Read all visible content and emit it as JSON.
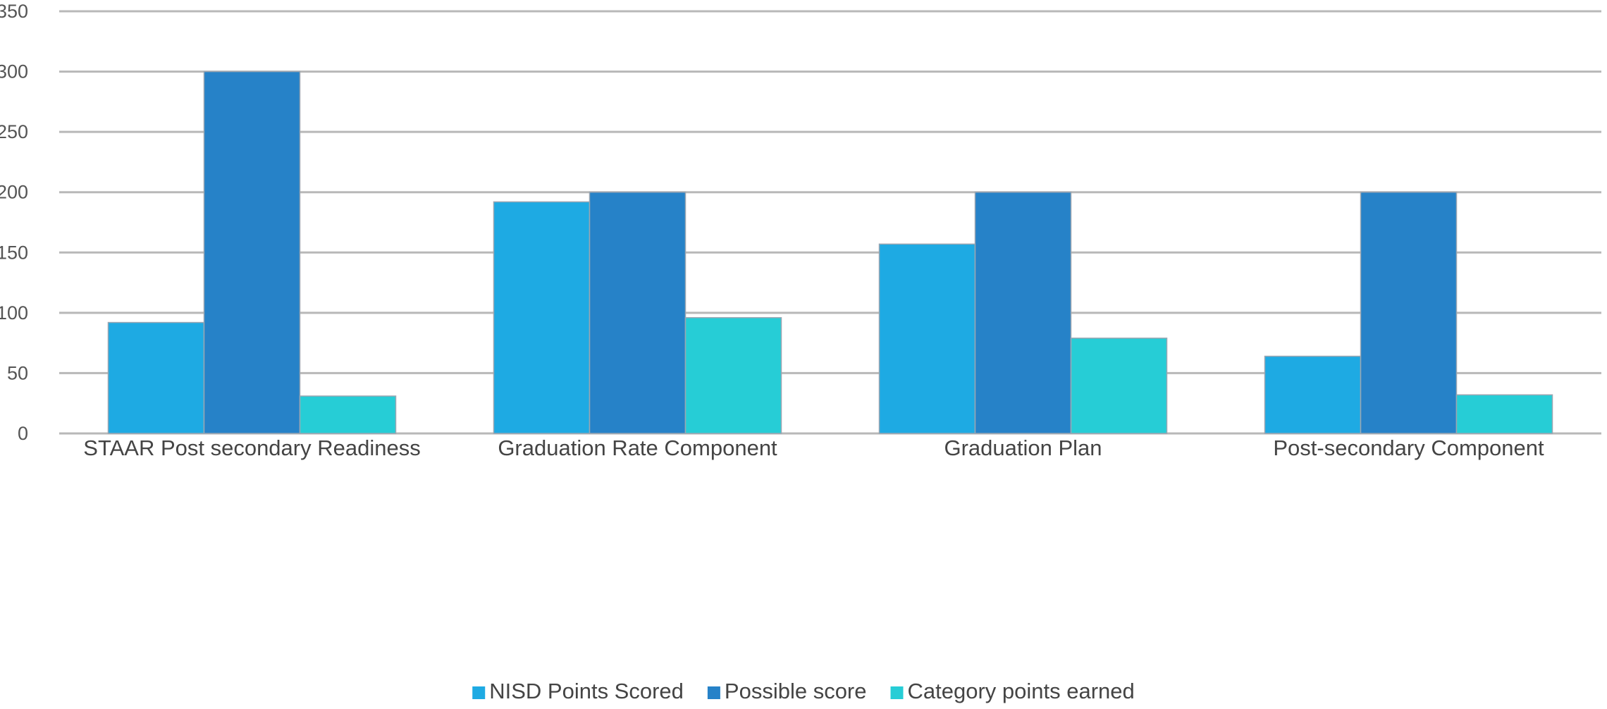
{
  "chart_data": {
    "type": "bar",
    "categories": [
      "STAAR Post secondary Readiness",
      "Graduation Rate Component",
      "Graduation Plan",
      "Post-secondary Component"
    ],
    "series": [
      {
        "name": "NISD Points Scored",
        "values": [
          92,
          192,
          157,
          64
        ],
        "color": "#1eaae3"
      },
      {
        "name": "Possible score",
        "values": [
          300,
          200,
          200,
          200
        ],
        "color": "#2682c8"
      },
      {
        "name": "Category points earned",
        "values": [
          31,
          96,
          79,
          32
        ],
        "color": "#26cdd6"
      }
    ],
    "ylim": [
      0,
      350
    ],
    "yticks": [
      0,
      50,
      100,
      150,
      200,
      250,
      300,
      350
    ],
    "grid": true,
    "legend_position": "bottom-center"
  }
}
